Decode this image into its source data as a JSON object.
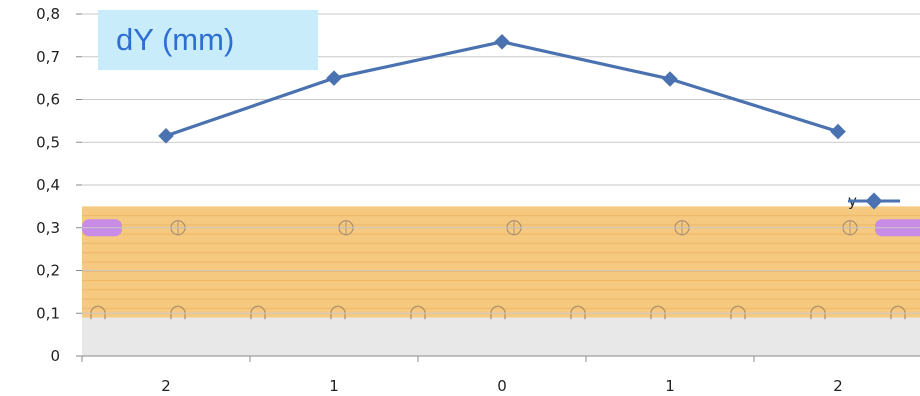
{
  "chart_data": {
    "type": "line",
    "title": "dY (mm)",
    "xlabel": "",
    "ylabel": "",
    "categories": [
      "2",
      "1",
      "0",
      "1",
      "2"
    ],
    "series": [
      {
        "name": "y",
        "values": [
          0.515,
          0.65,
          0.735,
          0.648,
          0.525
        ],
        "color": "#4a72b0"
      }
    ],
    "ylim": [
      0,
      0.8
    ],
    "yticks": [
      "0",
      "0,1",
      "0,2",
      "0,3",
      "0,4",
      "0,5",
      "0,6",
      "0,7",
      "0,8"
    ],
    "grid": true,
    "legend_position": "right"
  },
  "background_drawing": {
    "band_color": "#f5c97f",
    "band_stripe_color": "#eab05f",
    "pad_color": "#c98ce6",
    "marker_color": "#b09270",
    "lower_band_color": "#e8e8e8"
  }
}
